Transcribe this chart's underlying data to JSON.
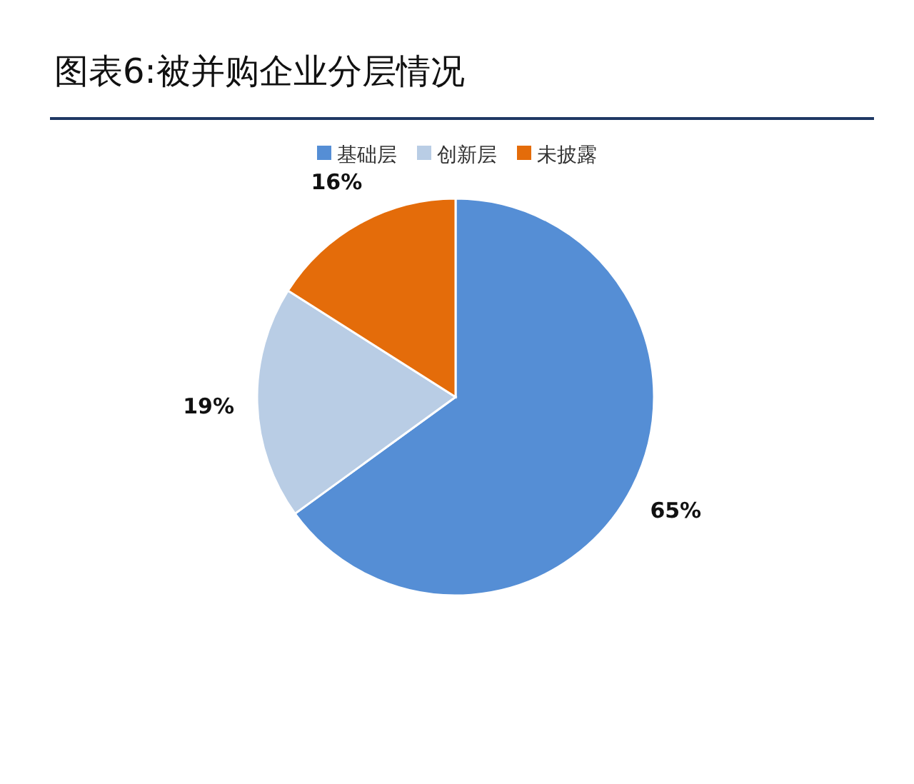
{
  "chart_data": {
    "type": "pie",
    "title": "图表6:被并购企业分层情况",
    "categories": [
      "基础层",
      "创新层",
      "未披露"
    ],
    "values": [
      65,
      19,
      16
    ],
    "value_labels": [
      "65%",
      "19%",
      "16%"
    ],
    "colors": [
      "#558ed5",
      "#b9cde5",
      "#e46c0a"
    ],
    "legend": "top"
  }
}
